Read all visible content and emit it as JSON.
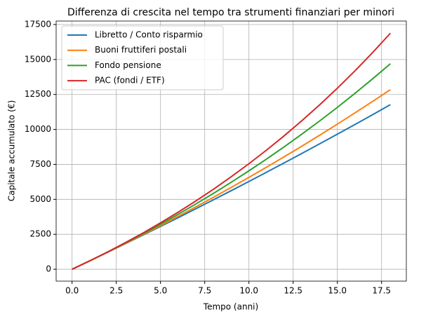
{
  "chart_data": {
    "type": "line",
    "title": "Differenza di crescita nel tempo tra strumenti finanziari per minori",
    "x_label": "Tempo (anni)",
    "y_label": "Capitale accumulato (€)",
    "x": [
      0,
      1,
      2,
      3,
      4,
      5,
      6,
      7,
      8,
      9,
      10,
      11,
      12,
      13,
      14,
      15,
      16,
      17,
      18
    ],
    "series": [
      {
        "name": "Libretto / Conto risparmio",
        "color": "#1f77b4",
        "values": [
          0,
          600,
          1206,
          1818,
          2436,
          3061,
          3691,
          4328,
          4972,
          5621,
          6277,
          6940,
          7610,
          8285,
          8968,
          9658,
          10355,
          11058,
          11769
        ]
      },
      {
        "name": "Buoni fruttiferi postali",
        "color": "#ff7f0e",
        "values": [
          0,
          600,
          1212,
          1836,
          2473,
          3122,
          3785,
          4461,
          5150,
          5853,
          6570,
          7301,
          8047,
          8808,
          9584,
          10376,
          11184,
          12007,
          12847
        ]
      },
      {
        "name": "Fondo pensione",
        "color": "#2ca02c",
        "values": [
          0,
          600,
          1221,
          1864,
          2529,
          3218,
          3930,
          4668,
          5431,
          6221,
          7039,
          7885,
          8761,
          9668,
          10606,
          11578,
          12583,
          13623,
          14700
        ]
      },
      {
        "name": "PAC (fondi / ETF)",
        "color": "#d62728",
        "values": [
          0,
          600,
          1230,
          1892,
          2586,
          3315,
          4081,
          4885,
          5729,
          6616,
          7547,
          8524,
          9550,
          10628,
          11759,
          12947,
          14194,
          15504,
          16879
        ]
      }
    ],
    "xlim": [
      -0.9,
      18.9
    ],
    "ylim": [
      -850,
      17750
    ],
    "xticks": [
      {
        "value": 0,
        "label": "0.0"
      },
      {
        "value": 2.5,
        "label": "2.5"
      },
      {
        "value": 5,
        "label": "5.0"
      },
      {
        "value": 7.5,
        "label": "7.5"
      },
      {
        "value": 10,
        "label": "10.0"
      },
      {
        "value": 12.5,
        "label": "12.5"
      },
      {
        "value": 15,
        "label": "15.0"
      },
      {
        "value": 17.5,
        "label": "17.5"
      }
    ],
    "yticks": [
      0,
      2500,
      5000,
      7500,
      10000,
      12500,
      15000,
      17500
    ],
    "grid": true,
    "legend": "upper left"
  }
}
